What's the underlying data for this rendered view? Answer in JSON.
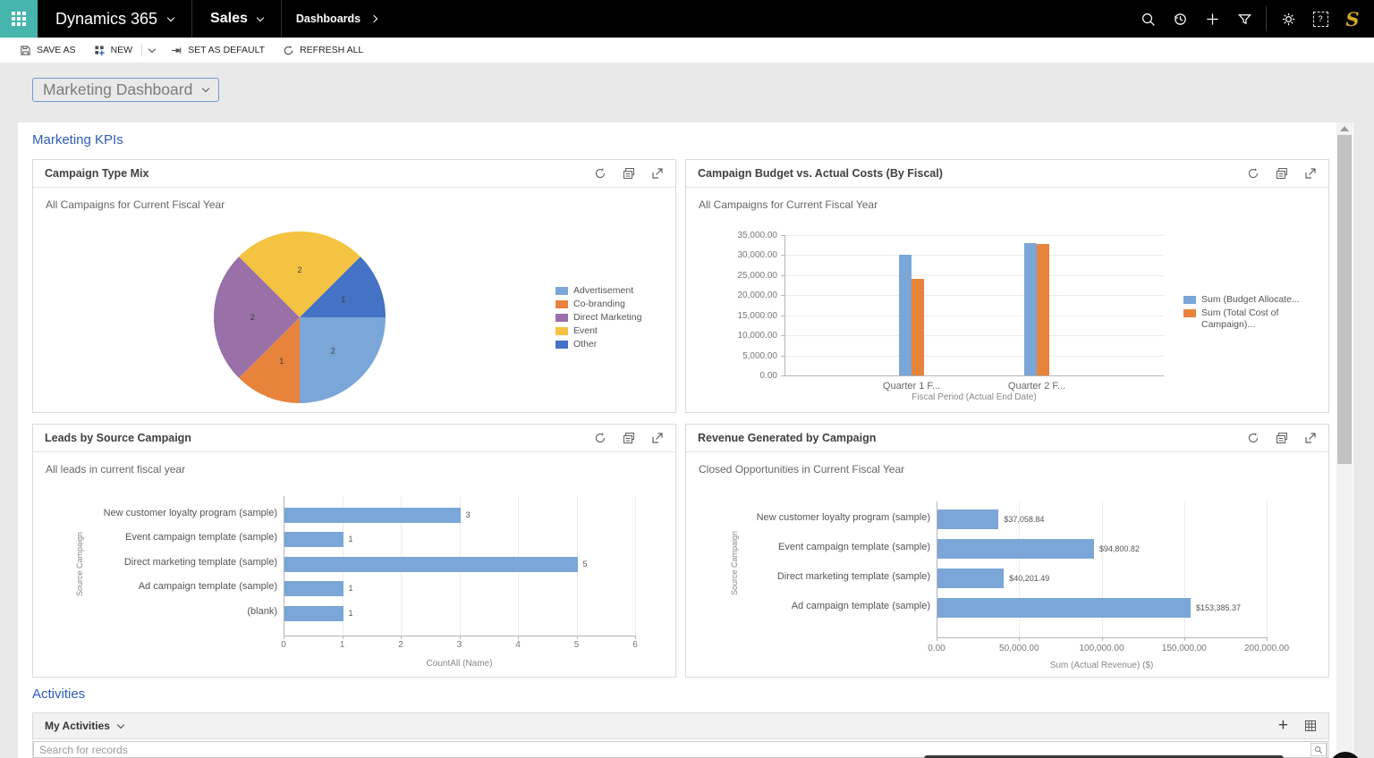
{
  "topnav": {
    "app": "Dynamics 365",
    "area": "Sales",
    "breadcrumb": "Dashboards"
  },
  "command_bar": {
    "save_as": "SAVE AS",
    "new": "NEW",
    "set_as_default": "SET AS DEFAULT",
    "refresh_all": "REFRESH ALL"
  },
  "page": {
    "dashboard_selector": "Marketing Dashboard",
    "kpi_section": "Marketing KPIs",
    "activities_section": "Activities"
  },
  "activities": {
    "view": "My Activities",
    "search_placeholder": "Search for records"
  },
  "avatar": {
    "initial": "S"
  },
  "colors": {
    "accent_teal": "#45b5ae",
    "section_heading_blue": "#2e5cb8",
    "avatar_gold": "#d4a728",
    "chart_blue": "#7aa6d8",
    "chart_orange": "#e8833c",
    "chart_purple": "#9970a8",
    "chart_yellow": "#f5c342",
    "chart_dark_blue": "#4472c4"
  },
  "chart_data": [
    {
      "type": "pie",
      "title": "Campaign Type Mix",
      "subtitle": "All Campaigns for Current Fiscal Year",
      "categories": [
        "Advertisement",
        "Co-branding",
        "Direct Marketing",
        "Event",
        "Other"
      ],
      "values": [
        2,
        1,
        2,
        2,
        1
      ],
      "colors": [
        "#7aa6d8",
        "#e8833c",
        "#9970a8",
        "#f5c342",
        "#4472c4"
      ],
      "legend_position": "right"
    },
    {
      "type": "column",
      "title": "Campaign Budget vs. Actual Costs (By Fiscal)",
      "subtitle": "All Campaigns for Current Fiscal Year",
      "categories": [
        "Quarter 1 F...",
        "Quarter 2 F..."
      ],
      "series": [
        {
          "name": "Sum (Budget Allocate...",
          "color": "#7aa6d8",
          "values": [
            30000,
            33000
          ]
        },
        {
          "name": "Sum (Total Cost of Campaign)...",
          "color": "#e8833c",
          "values": [
            24000,
            32800
          ]
        }
      ],
      "xlabel": "Fiscal Period (Actual End Date)",
      "ylim": [
        0,
        35000
      ],
      "yticks": {
        "values": [
          0,
          5000,
          10000,
          15000,
          20000,
          25000,
          30000,
          35000
        ],
        "labels": [
          "0.00",
          "5,000.00",
          "10,000.00",
          "15,000.00",
          "20,000.00",
          "25,000.00",
          "30,000.00",
          "35,000.00"
        ]
      },
      "legend_position": "right"
    },
    {
      "type": "hbar",
      "title": "Leads by Source Campaign",
      "subtitle": "All leads in current fiscal year",
      "categories": [
        "New customer loyalty program (sample)",
        "Event campaign template (sample)",
        "Direct marketing template (sample)",
        "Ad campaign template (sample)",
        "(blank)"
      ],
      "values": [
        3,
        1,
        5,
        1,
        1
      ],
      "value_labels": [
        "3",
        "1",
        "5",
        "1",
        "1"
      ],
      "bar_color": "#7aa6d8",
      "xlabel": "CountAll (Name)",
      "ylabel": "Source Campaign",
      "xlim": [
        0,
        6
      ],
      "xticks": {
        "values": [
          0,
          1,
          2,
          3,
          4,
          5,
          6
        ],
        "labels": [
          "0",
          "1",
          "2",
          "3",
          "4",
          "5",
          "6"
        ]
      }
    },
    {
      "type": "hbar",
      "title": "Revenue Generated by Campaign",
      "subtitle": "Closed Opportunities in Current Fiscal Year",
      "categories": [
        "New customer loyalty program (sample)",
        "Event campaign template (sample)",
        "Direct marketing template (sample)",
        "Ad campaign template (sample)"
      ],
      "values": [
        37058.84,
        94800.82,
        40201.49,
        153385.37
      ],
      "value_labels": [
        "$37,058.84",
        "$94,800.82",
        "$40,201.49",
        "$153,385.37"
      ],
      "bar_color": "#7aa6d8",
      "xlabel": "Sum (Actual Revenue) ($)",
      "ylabel": "Source Campaign",
      "xlim": [
        0,
        200000
      ],
      "xticks": {
        "values": [
          0,
          50000,
          100000,
          150000,
          200000
        ],
        "labels": [
          "0.00",
          "50,000.00",
          "100,000.00",
          "150,000.00",
          "200,000.00"
        ]
      }
    }
  ]
}
